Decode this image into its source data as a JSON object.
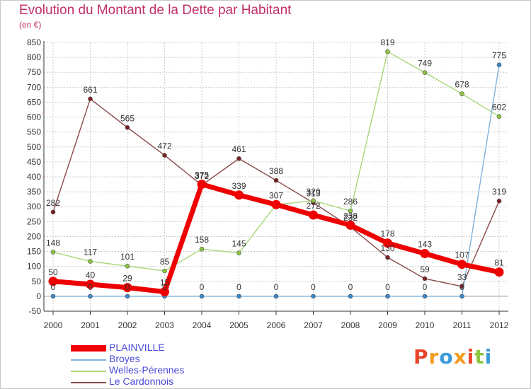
{
  "title": "Evolution du Montant de la Dette par Habitant",
  "subtitle": "(en €)",
  "logo_text": "Proxiti",
  "logo_colors": [
    "#e8452c",
    "#f29c1f",
    "#3b9ad9",
    "#f29c1f",
    "#e8452c",
    "#8cc63f",
    "#3b9ad9"
  ],
  "colors": {
    "grid": "#cccccc",
    "zero_line": "#999999",
    "axis": "#333333",
    "title": "#c0306a"
  },
  "chart_data": {
    "type": "line",
    "title": "Evolution du Montant de la Dette par Habitant",
    "subtitle": "(en €)",
    "xlabel": "",
    "ylabel": "",
    "x": [
      "2000",
      "2001",
      "2002",
      "2003",
      "2004",
      "2005",
      "2006",
      "2007",
      "2008",
      "2009",
      "2010",
      "2011",
      "2012"
    ],
    "ylim": [
      -50,
      850
    ],
    "yticks": [
      -50,
      0,
      50,
      100,
      150,
      200,
      250,
      300,
      350,
      400,
      450,
      500,
      550,
      600,
      650,
      700,
      750,
      800,
      850
    ],
    "grid": true,
    "legend_position": "bottom-left",
    "series": [
      {
        "name": "Le Cardonnois",
        "color": "#7a1f24",
        "line_color": "#8a4a4a",
        "values": [
          282,
          661,
          565,
          472,
          372,
          461,
          388,
          313,
          232,
          130,
          59,
          33,
          319
        ]
      },
      {
        "name": "Welles-Pérennes",
        "color": "#8cc63f",
        "line_color": "#a8d878",
        "values": [
          148,
          117,
          101,
          85,
          158,
          145,
          307,
          320,
          286,
          819,
          749,
          678,
          602
        ]
      },
      {
        "name": "Broyes",
        "color": "#3a87c8",
        "line_color": "#7fb2dd",
        "values": [
          0,
          0,
          0,
          0,
          0,
          0,
          0,
          0,
          0,
          0,
          0,
          0,
          775
        ]
      },
      {
        "name": "PLAINVILLE",
        "color": "#ee0000",
        "values": [
          50,
          40,
          29,
          15,
          375,
          339,
          307,
          272,
          238,
          178,
          143,
          107,
          81
        ]
      }
    ],
    "labels": [
      {
        "series": "PLAINVILLE",
        "text": "50",
        "x": "2000",
        "y": 50
      },
      {
        "series": "PLAINVILLE",
        "text": "40",
        "x": "2001",
        "y": 40
      },
      {
        "series": "PLAINVILLE",
        "text": "29",
        "x": "2002",
        "y": 29
      },
      {
        "series": "PLAINVILLE",
        "text": "15",
        "x": "2003",
        "y": 15
      },
      {
        "series": "PLAINVILLE",
        "text": "375",
        "x": "2004",
        "y": 375
      },
      {
        "series": "PLAINVILLE",
        "text": "339",
        "x": "2005",
        "y": 339
      },
      {
        "series": "PLAINVILLE",
        "text": "307",
        "x": "2006",
        "y": 307
      },
      {
        "series": "PLAINVILLE",
        "text": "272",
        "x": "2007",
        "y": 272
      },
      {
        "series": "PLAINVILLE",
        "text": "238",
        "x": "2008",
        "y": 238
      },
      {
        "series": "PLAINVILLE",
        "text": "178",
        "x": "2009",
        "y": 178
      },
      {
        "series": "PLAINVILLE",
        "text": "143",
        "x": "2010",
        "y": 143
      },
      {
        "series": "PLAINVILLE",
        "text": "107",
        "x": "2011",
        "y": 107
      },
      {
        "series": "PLAINVILLE",
        "text": "81",
        "x": "2012",
        "y": 81
      },
      {
        "series": "Broyes",
        "text": "0",
        "x": "2000",
        "y": 0
      },
      {
        "series": "Broyes",
        "text": "0",
        "x": "2001",
        "y": 0
      },
      {
        "series": "Broyes",
        "text": "0",
        "x": "2002",
        "y": 0
      },
      {
        "series": "Broyes",
        "text": "0",
        "x": "2003",
        "y": 0
      },
      {
        "series": "Broyes",
        "text": "0",
        "x": "2004",
        "y": 0
      },
      {
        "series": "Broyes",
        "text": "0",
        "x": "2005",
        "y": 0
      },
      {
        "series": "Broyes",
        "text": "0",
        "x": "2006",
        "y": 0
      },
      {
        "series": "Broyes",
        "text": "0",
        "x": "2007",
        "y": 0
      },
      {
        "series": "Broyes",
        "text": "0",
        "x": "2008",
        "y": 0
      },
      {
        "series": "Broyes",
        "text": "0",
        "x": "2009",
        "y": 0
      },
      {
        "series": "Broyes",
        "text": "0",
        "x": "2010",
        "y": 0
      },
      {
        "series": "Broyes",
        "text": "0",
        "x": "2011",
        "y": 0
      },
      {
        "series": "Broyes",
        "text": "775",
        "x": "2012",
        "y": 775
      },
      {
        "series": "Welles-Pérennes",
        "text": "148",
        "x": "2000",
        "y": 148
      },
      {
        "series": "Welles-Pérennes",
        "text": "117",
        "x": "2001",
        "y": 117
      },
      {
        "series": "Welles-Pérennes",
        "text": "101",
        "x": "2002",
        "y": 101
      },
      {
        "series": "Welles-Pérennes",
        "text": "85",
        "x": "2003",
        "y": 85
      },
      {
        "series": "Welles-Pérennes",
        "text": "158",
        "x": "2004",
        "y": 158
      },
      {
        "series": "Welles-Pérennes",
        "text": "145",
        "x": "2005",
        "y": 145
      },
      {
        "series": "Welles-Pérennes",
        "text": "320",
        "x": "2007",
        "y": 320
      },
      {
        "series": "Welles-Pérennes",
        "text": "286",
        "x": "2008",
        "y": 286
      },
      {
        "series": "Welles-Pérennes",
        "text": "819",
        "x": "2009",
        "y": 819
      },
      {
        "series": "Welles-Pérennes",
        "text": "749",
        "x": "2010",
        "y": 749
      },
      {
        "series": "Welles-Pérennes",
        "text": "678",
        "x": "2011",
        "y": 678
      },
      {
        "series": "Welles-Pérennes",
        "text": "602",
        "x": "2012",
        "y": 602
      },
      {
        "series": "Le Cardonnois",
        "text": "282",
        "x": "2000",
        "y": 282
      },
      {
        "series": "Le Cardonnois",
        "text": "661",
        "x": "2001",
        "y": 661
      },
      {
        "series": "Le Cardonnois",
        "text": "565",
        "x": "2002",
        "y": 565
      },
      {
        "series": "Le Cardonnois",
        "text": "472",
        "x": "2003",
        "y": 472
      },
      {
        "series": "Le Cardonnois",
        "text": "372",
        "x": "2004",
        "y": 372
      },
      {
        "series": "Le Cardonnois",
        "text": "461",
        "x": "2005",
        "y": 461
      },
      {
        "series": "Le Cardonnois",
        "text": "388",
        "x": "2006",
        "y": 388
      },
      {
        "series": "Le Cardonnois",
        "text": "313",
        "x": "2007",
        "y": 313
      },
      {
        "series": "Le Cardonnois",
        "text": "232",
        "x": "2008",
        "y": 232
      },
      {
        "series": "Le Cardonnois",
        "text": "130",
        "x": "2009",
        "y": 130
      },
      {
        "series": "Le Cardonnois",
        "text": "59",
        "x": "2010",
        "y": 59
      },
      {
        "series": "Le Cardonnois",
        "text": "33",
        "x": "2011",
        "y": 33
      },
      {
        "series": "Le Cardonnois",
        "text": "319",
        "x": "2012",
        "y": 319
      }
    ]
  },
  "legend": [
    {
      "label": "PLAINVILLE",
      "color": "#ee0000",
      "thick": true
    },
    {
      "label": "Broyes",
      "color": "#7fb2dd",
      "thick": false
    },
    {
      "label": "Welles-Pérennes",
      "color": "#a8d878",
      "thick": false
    },
    {
      "label": "Le Cardonnois",
      "color": "#8a4a4a",
      "thick": false
    }
  ]
}
